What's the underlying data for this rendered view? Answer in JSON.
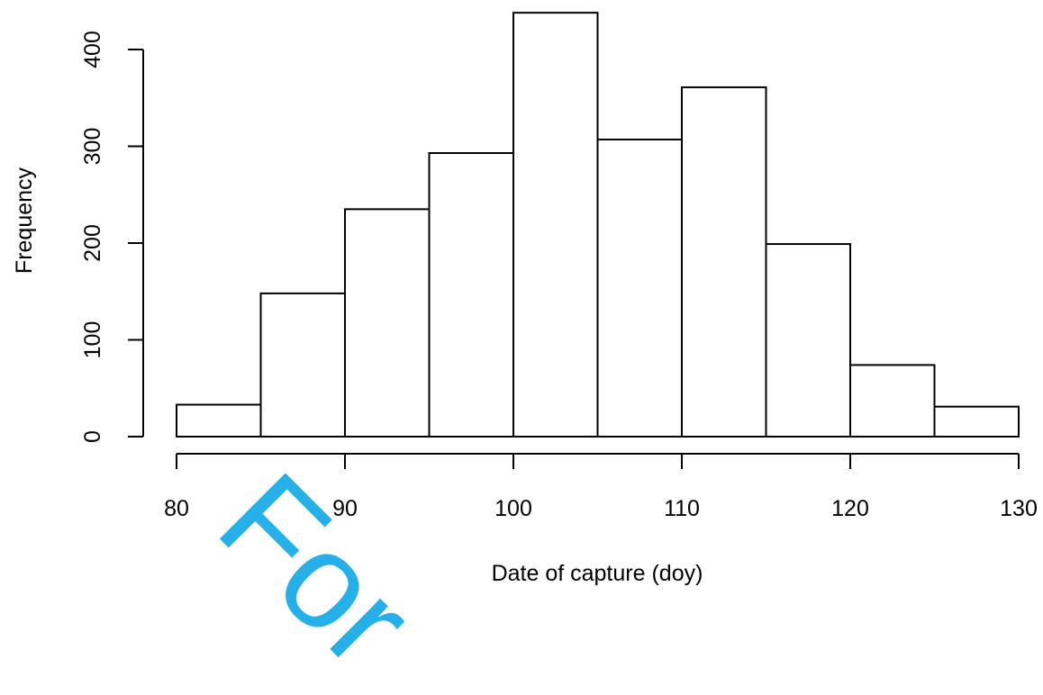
{
  "chart_data": {
    "type": "bar",
    "subtype": "histogram",
    "bin_edges": [
      80,
      85,
      90,
      95,
      100,
      105,
      110,
      115,
      120,
      125,
      130
    ],
    "values": [
      33,
      148,
      235,
      293,
      438,
      307,
      361,
      199,
      74,
      31
    ],
    "xlabel": "Date of capture (doy)",
    "ylabel": "Frequency",
    "xlim": [
      80,
      130
    ],
    "ylim": [
      0,
      400
    ],
    "xticks": [
      80,
      90,
      100,
      110,
      120,
      130
    ],
    "yticks": [
      0,
      100,
      200,
      300,
      400
    ],
    "grid": false,
    "bar_fill": "#ffffff",
    "bar_stroke": "#000000"
  },
  "watermark": {
    "text": "For",
    "color": "#00a3e6"
  }
}
